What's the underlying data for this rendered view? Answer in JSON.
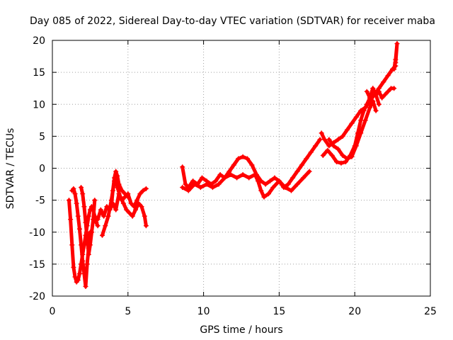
{
  "chart_data": {
    "type": "scatter",
    "title": "Day 085 of 2022, Sidereal Day-to-day VTEC variation (SDTVAR) for receiver maba",
    "xlabel": "GPS time / hours",
    "ylabel": "SDTVAR / TECUs",
    "xlim": [
      0,
      25
    ],
    "ylim": [
      -20,
      20
    ],
    "xticks": [
      0,
      5,
      10,
      15,
      20,
      25
    ],
    "yticks": [
      -20,
      -15,
      -10,
      -5,
      0,
      5,
      10,
      15,
      20
    ],
    "grid": true,
    "marker": "plus",
    "color": "#ff0000",
    "series": [
      {
        "x": [
          1.1,
          1.2,
          1.3,
          1.4,
          1.5,
          1.6,
          1.7,
          1.8,
          1.9,
          2.0,
          2.1,
          2.2,
          2.3,
          2.4,
          2.5,
          2.6,
          2.7,
          2.8,
          2.9,
          3.0
        ],
        "y": [
          -5.0,
          -8.0,
          -12.0,
          -15.5,
          -17.0,
          -17.8,
          -17.5,
          -16.5,
          -15.0,
          -13.5,
          -12.0,
          -10.5,
          -9.0,
          -7.5,
          -6.5,
          -6.0,
          -6.5,
          -7.5,
          -8.5,
          -9.0
        ]
      },
      {
        "x": [
          1.3,
          1.4,
          1.5,
          1.6,
          1.7,
          1.8,
          1.9,
          2.0,
          2.1,
          2.2,
          2.3,
          2.4,
          2.5
        ],
        "y": [
          -3.5,
          -3.2,
          -4.0,
          -5.5,
          -7.5,
          -9.5,
          -12.0,
          -14.5,
          -16.5,
          -18.5,
          -15.0,
          -12.5,
          -10.0
        ]
      },
      {
        "x": [
          1.9,
          2.0,
          2.1,
          2.2,
          2.3,
          2.4,
          2.5,
          2.6,
          2.7,
          2.8
        ],
        "y": [
          -3.0,
          -4.0,
          -6.0,
          -8.5,
          -11.0,
          -13.5,
          -12.0,
          -10.0,
          -8.0,
          -5.0
        ]
      },
      {
        "x": [
          3.0,
          3.2,
          3.4,
          3.6,
          3.8,
          4.0,
          4.2,
          4.4,
          4.6,
          4.8,
          5.0,
          5.2,
          5.4,
          5.6,
          5.8,
          6.0,
          6.2
        ],
        "y": [
          -8.0,
          -6.5,
          -7.5,
          -6.0,
          -6.5,
          -5.5,
          -6.5,
          -4.0,
          -5.0,
          -4.5,
          -4.0,
          -5.5,
          -6.0,
          -5.0,
          -4.0,
          -3.5,
          -3.2
        ]
      },
      {
        "x": [
          3.3,
          3.5,
          3.7,
          3.9,
          4.1,
          4.2,
          4.3,
          4.5,
          4.7,
          4.9,
          5.1,
          5.3,
          5.5,
          5.7,
          5.9,
          6.1,
          6.2
        ],
        "y": [
          -10.5,
          -9.0,
          -7.5,
          -5.0,
          -2.0,
          -1.0,
          -3.0,
          -4.5,
          -5.5,
          -6.5,
          -7.0,
          -7.5,
          -6.5,
          -5.5,
          -6.0,
          -7.5,
          -9.0
        ]
      },
      {
        "x": [
          3.9,
          4.0,
          4.1,
          4.2,
          4.3,
          4.4,
          4.6,
          4.8,
          5.0
        ],
        "y": [
          -6.0,
          -3.5,
          -1.5,
          -0.5,
          -1.2,
          -2.5,
          -3.5,
          -4.0,
          -4.5
        ]
      },
      {
        "x": [
          8.6,
          8.8,
          9.0,
          9.3,
          9.6,
          9.9,
          10.2,
          10.5,
          10.8,
          11.1,
          11.4,
          11.7,
          12.0,
          12.3,
          12.6,
          12.9,
          13.2,
          13.5,
          13.8,
          14.1,
          14.4,
          14.7,
          15.0,
          15.3,
          15.6,
          15.9,
          16.2,
          16.5,
          16.8,
          17.1,
          17.4,
          17.7
        ],
        "y": [
          0.2,
          -2.5,
          -3.0,
          -2.0,
          -2.5,
          -1.5,
          -2.0,
          -2.5,
          -2.0,
          -1.0,
          -1.5,
          -0.5,
          0.5,
          1.5,
          1.8,
          1.5,
          0.5,
          -1.0,
          -2.0,
          -2.5,
          -2.0,
          -1.5,
          -2.0,
          -3.0,
          -2.5,
          -1.5,
          -0.5,
          0.5,
          1.5,
          2.5,
          3.5,
          4.5
        ]
      },
      {
        "x": [
          8.6,
          9.0,
          9.4,
          9.8,
          10.2,
          10.6,
          11.0,
          11.4,
          11.8,
          12.2,
          12.6,
          13.0,
          13.4,
          13.6,
          13.8,
          14.0,
          14.3,
          14.6,
          15.0,
          15.4,
          15.8,
          16.2,
          16.6,
          17.0
        ],
        "y": [
          -3.0,
          -3.5,
          -2.5,
          -3.0,
          -2.5,
          -3.0,
          -2.5,
          -1.5,
          -1.0,
          -1.5,
          -1.0,
          -1.5,
          -1.0,
          -2.0,
          -3.5,
          -4.5,
          -4.0,
          -3.0,
          -2.0,
          -3.0,
          -3.5,
          -2.5,
          -1.5,
          -0.5
        ]
      },
      {
        "x": [
          17.8,
          18.0,
          18.3,
          18.6,
          18.9,
          19.2,
          19.5,
          19.8,
          20.1,
          20.4,
          20.7,
          21.0,
          21.3,
          21.6,
          21.9,
          22.2,
          22.5,
          22.7
        ],
        "y": [
          5.5,
          4.5,
          3.5,
          4.0,
          4.5,
          5.0,
          6.0,
          7.0,
          8.0,
          9.0,
          9.5,
          10.5,
          11.5,
          12.5,
          13.5,
          14.5,
          15.5,
          16.0
        ]
      },
      {
        "x": [
          17.9,
          18.2,
          18.5,
          18.8,
          19.1,
          19.4,
          19.7,
          20.0,
          20.2,
          20.4,
          20.6,
          20.8,
          21.0,
          21.2,
          21.4,
          21.6,
          21.8,
          22.0,
          22.2,
          22.4,
          22.6
        ],
        "y": [
          2.0,
          2.8,
          2.0,
          1.0,
          0.8,
          1.0,
          2.0,
          3.5,
          5.5,
          7.5,
          9.0,
          10.0,
          11.0,
          12.5,
          11.5,
          12.0,
          11.0,
          11.5,
          12.0,
          12.5,
          12.5
        ]
      },
      {
        "x": [
          18.3,
          18.6,
          18.9,
          19.2,
          19.5,
          19.8,
          20.1,
          20.4,
          20.7,
          21.0,
          21.2,
          21.4
        ],
        "y": [
          4.5,
          3.5,
          3.0,
          2.0,
          1.5,
          1.8,
          3.5,
          5.5,
          7.5,
          9.5,
          10.5,
          9.0
        ]
      },
      {
        "x": [
          20.8,
          21.0,
          21.2,
          21.4,
          21.6
        ],
        "y": [
          12.0,
          11.0,
          12.5,
          11.5,
          10.0
        ]
      },
      {
        "x": [
          22.6,
          22.7,
          22.8,
          22.7
        ],
        "y": [
          15.5,
          17.0,
          19.5,
          16.5
        ]
      }
    ]
  }
}
